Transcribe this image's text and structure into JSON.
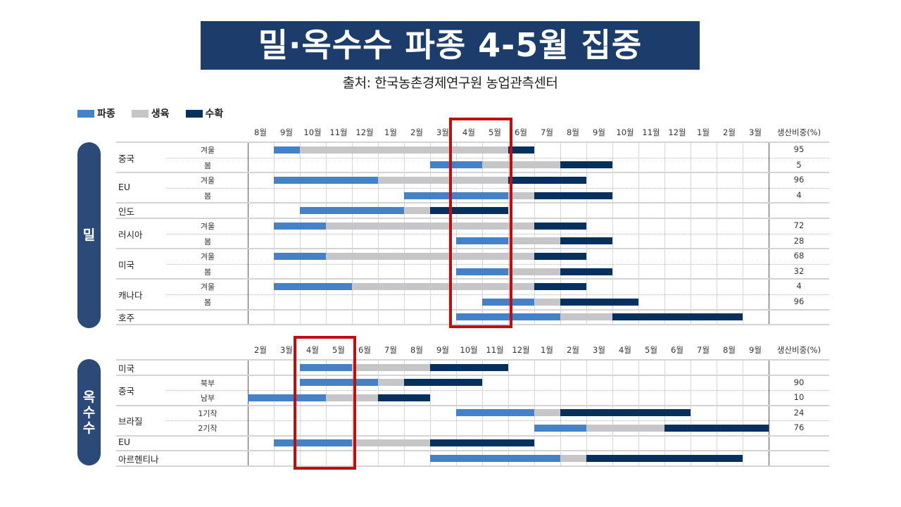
{
  "title": "밀·옥수수 파종 4-5월 집중",
  "source": "출처: 한국농촌경제연구원 농업관측센터",
  "colors": {
    "sow": "#4581c6",
    "grow": "#c6c6c8",
    "harvest": "#06315f",
    "banner": "#1c3d6b",
    "highlight": "#c00d0d"
  },
  "legend": [
    {
      "key": "sow",
      "label": "파종",
      "color": "#4581c6"
    },
    {
      "key": "grow",
      "label": "생육",
      "color": "#c6c6c8"
    },
    {
      "key": "harvest",
      "label": "수확",
      "color": "#06315f"
    }
  ],
  "share_header": "생산비중(%)",
  "chart_data": [
    {
      "type": "gantt",
      "title": "밀",
      "months": [
        "8월",
        "9월",
        "10월",
        "11월",
        "12월",
        "1월",
        "2월",
        "3월",
        "4월",
        "5월",
        "6월",
        "7월",
        "8월",
        "9월",
        "10월",
        "11월",
        "12월",
        "1월",
        "2월",
        "3월"
      ],
      "highlight_months": [
        "4월",
        "5월"
      ],
      "rows": [
        {
          "country": "중국",
          "season": "겨울",
          "share": "95",
          "phases": [
            {
              "type": "sow",
              "start": 1,
              "end": 2
            },
            {
              "type": "grow",
              "start": 2,
              "end": 10
            },
            {
              "type": "harvest",
              "start": 10,
              "end": 11
            }
          ]
        },
        {
          "country": "",
          "season": "봄",
          "share": "5",
          "phases": [
            {
              "type": "sow",
              "start": 7,
              "end": 9
            },
            {
              "type": "grow",
              "start": 9,
              "end": 12
            },
            {
              "type": "harvest",
              "start": 12,
              "end": 14
            }
          ]
        },
        {
          "country": "EU",
          "season": "겨울",
          "share": "96",
          "phases": [
            {
              "type": "sow",
              "start": 1,
              "end": 5
            },
            {
              "type": "grow",
              "start": 5,
              "end": 10
            },
            {
              "type": "harvest",
              "start": 10,
              "end": 13
            }
          ]
        },
        {
          "country": "",
          "season": "봄",
          "share": "4",
          "phases": [
            {
              "type": "sow",
              "start": 6,
              "end": 10
            },
            {
              "type": "grow",
              "start": 10,
              "end": 11
            },
            {
              "type": "harvest",
              "start": 11,
              "end": 14
            }
          ]
        },
        {
          "country": "인도",
          "season": "",
          "share": "",
          "phases": [
            {
              "type": "sow",
              "start": 2,
              "end": 6
            },
            {
              "type": "grow",
              "start": 6,
              "end": 7
            },
            {
              "type": "harvest",
              "start": 7,
              "end": 10
            }
          ]
        },
        {
          "country": "러시아",
          "season": "겨울",
          "share": "72",
          "phases": [
            {
              "type": "sow",
              "start": 1,
              "end": 3
            },
            {
              "type": "grow",
              "start": 3,
              "end": 11
            },
            {
              "type": "harvest",
              "start": 11,
              "end": 13
            }
          ]
        },
        {
          "country": "",
          "season": "봄",
          "share": "28",
          "phases": [
            {
              "type": "sow",
              "start": 8,
              "end": 10
            },
            {
              "type": "grow",
              "start": 10,
              "end": 12
            },
            {
              "type": "harvest",
              "start": 12,
              "end": 14
            }
          ]
        },
        {
          "country": "미국",
          "season": "겨울",
          "share": "68",
          "phases": [
            {
              "type": "sow",
              "start": 1,
              "end": 3
            },
            {
              "type": "grow",
              "start": 3,
              "end": 11
            },
            {
              "type": "harvest",
              "start": 11,
              "end": 13
            }
          ]
        },
        {
          "country": "",
          "season": "봄",
          "share": "32",
          "phases": [
            {
              "type": "sow",
              "start": 8,
              "end": 10
            },
            {
              "type": "grow",
              "start": 10,
              "end": 12
            },
            {
              "type": "harvest",
              "start": 12,
              "end": 14
            }
          ]
        },
        {
          "country": "캐나다",
          "season": "겨울",
          "share": "4",
          "phases": [
            {
              "type": "sow",
              "start": 1,
              "end": 4
            },
            {
              "type": "grow",
              "start": 4,
              "end": 11
            },
            {
              "type": "harvest",
              "start": 11,
              "end": 13
            }
          ]
        },
        {
          "country": "",
          "season": "봄",
          "share": "96",
          "phases": [
            {
              "type": "sow",
              "start": 9,
              "end": 11
            },
            {
              "type": "grow",
              "start": 11,
              "end": 12
            },
            {
              "type": "harvest",
              "start": 12,
              "end": 15
            }
          ]
        },
        {
          "country": "호주",
          "season": "",
          "share": "",
          "phases": [
            {
              "type": "sow",
              "start": 8,
              "end": 12
            },
            {
              "type": "grow",
              "start": 12,
              "end": 14
            },
            {
              "type": "harvest",
              "start": 14,
              "end": 19
            }
          ]
        }
      ],
      "country_groups": [
        {
          "label": "중국",
          "rows": [
            0,
            1
          ]
        },
        {
          "label": "EU",
          "rows": [
            2,
            3
          ]
        },
        {
          "label": "인도",
          "rows": [
            4
          ]
        },
        {
          "label": "러시아",
          "rows": [
            5,
            6
          ]
        },
        {
          "label": "미국",
          "rows": [
            7,
            8
          ]
        },
        {
          "label": "캐나다",
          "rows": [
            9,
            10
          ]
        },
        {
          "label": "호주",
          "rows": [
            11
          ]
        }
      ]
    },
    {
      "type": "gantt",
      "title": "옥수수",
      "months": [
        "2월",
        "3월",
        "4월",
        "5월",
        "6월",
        "7월",
        "8월",
        "9월",
        "10월",
        "11월",
        "12월",
        "1월",
        "2월",
        "3월",
        "4월",
        "5월",
        "6월",
        "7월",
        "8월",
        "9월"
      ],
      "highlight_months": [
        "4월",
        "5월"
      ],
      "rows": [
        {
          "country": "미국",
          "season": "",
          "share": "",
          "phases": [
            {
              "type": "sow",
              "start": 2,
              "end": 4
            },
            {
              "type": "grow",
              "start": 4,
              "end": 7
            },
            {
              "type": "harvest",
              "start": 7,
              "end": 10
            }
          ]
        },
        {
          "country": "중국",
          "season": "북부",
          "share": "90",
          "phases": [
            {
              "type": "sow",
              "start": 2,
              "end": 5
            },
            {
              "type": "grow",
              "start": 5,
              "end": 6
            },
            {
              "type": "harvest",
              "start": 6,
              "end": 9
            }
          ]
        },
        {
          "country": "",
          "season": "남부",
          "share": "10",
          "phases": [
            {
              "type": "sow",
              "start": 0,
              "end": 3
            },
            {
              "type": "grow",
              "start": 3,
              "end": 5
            },
            {
              "type": "harvest",
              "start": 5,
              "end": 7
            }
          ]
        },
        {
          "country": "브라질",
          "season": "1기작",
          "share": "24",
          "phases": [
            {
              "type": "sow",
              "start": 8,
              "end": 11
            },
            {
              "type": "grow",
              "start": 11,
              "end": 12
            },
            {
              "type": "harvest",
              "start": 12,
              "end": 17
            }
          ]
        },
        {
          "country": "",
          "season": "2기작",
          "share": "76",
          "phases": [
            {
              "type": "sow",
              "start": 11,
              "end": 13
            },
            {
              "type": "grow",
              "start": 13,
              "end": 16
            },
            {
              "type": "harvest",
              "start": 16,
              "end": 20
            }
          ]
        },
        {
          "country": "EU",
          "season": "",
          "share": "",
          "phases": [
            {
              "type": "sow",
              "start": 1,
              "end": 4
            },
            {
              "type": "grow",
              "start": 4,
              "end": 7
            },
            {
              "type": "harvest",
              "start": 7,
              "end": 11
            }
          ]
        },
        {
          "country": "아르헨티나",
          "season": "",
          "share": "",
          "phases": [
            {
              "type": "sow",
              "start": 7,
              "end": 12
            },
            {
              "type": "grow",
              "start": 12,
              "end": 13
            },
            {
              "type": "harvest",
              "start": 13,
              "end": 19
            }
          ]
        }
      ],
      "country_groups": [
        {
          "label": "미국",
          "rows": [
            0
          ]
        },
        {
          "label": "중국",
          "rows": [
            1,
            2
          ]
        },
        {
          "label": "브라질",
          "rows": [
            3,
            4
          ]
        },
        {
          "label": "EU",
          "rows": [
            5
          ]
        },
        {
          "label": "아르헨티나",
          "rows": [
            6
          ]
        }
      ]
    }
  ]
}
